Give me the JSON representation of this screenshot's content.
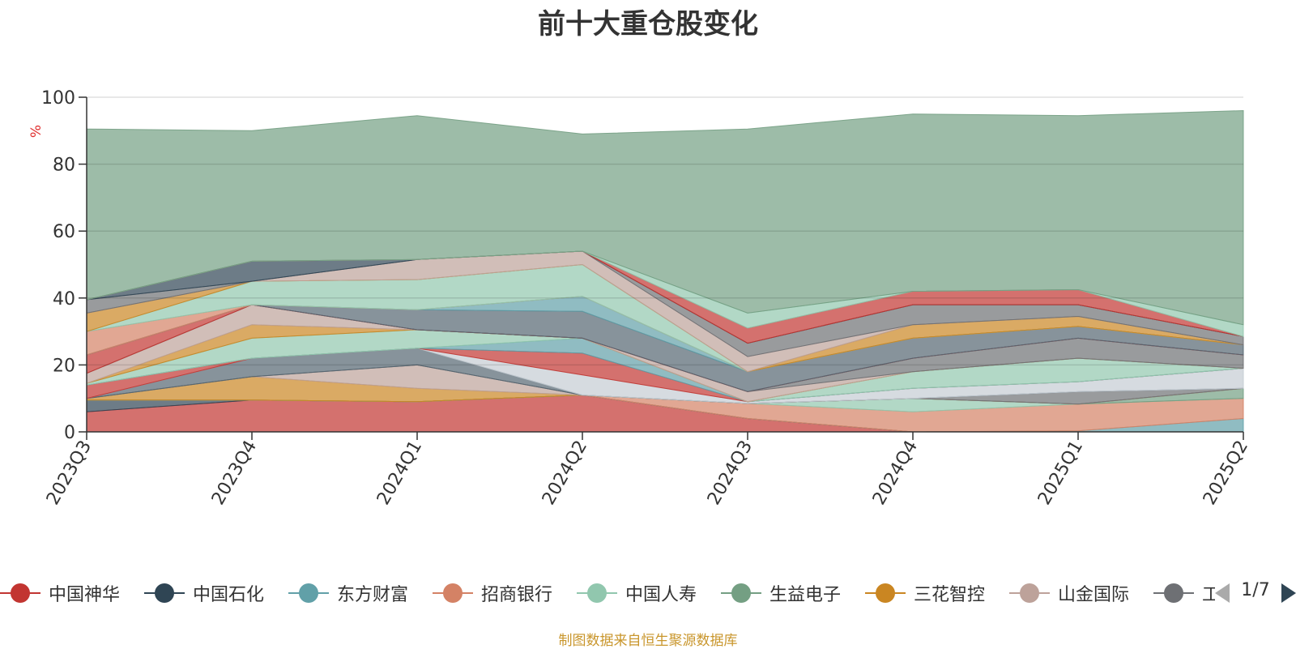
{
  "chart_data": {
    "type": "area",
    "stacked": true,
    "title": "前十大重仓股变化",
    "ylabel": "%",
    "ylim": [
      0,
      100
    ],
    "yticks": [
      0,
      20,
      40,
      60,
      80,
      100
    ],
    "grid": true,
    "x": [
      "2023Q3",
      "2023Q4",
      "2024Q1",
      "2024Q2",
      "2024Q3",
      "2024Q4",
      "2025Q1",
      "2025Q2"
    ],
    "series": [
      {
        "name": "中国神华",
        "color": "#c23531",
        "values": [
          6,
          9.5,
          9,
          11,
          4,
          0,
          0,
          0
        ]
      },
      {
        "name": "中国石化",
        "color": "#2f4554",
        "values": [
          3.5,
          0,
          0,
          0,
          0,
          0,
          0,
          0
        ]
      },
      {
        "name": "东方财富",
        "color": "#61a0a8",
        "values": [
          0,
          0,
          0,
          0,
          0,
          0,
          0.3,
          4
        ]
      },
      {
        "name": "招商银行",
        "color": "#d48265",
        "values": [
          0,
          0,
          0,
          0,
          4.5,
          6,
          8,
          6
        ]
      },
      {
        "name": "中国人寿",
        "color": "#91c7ae",
        "values": [
          0,
          0,
          0,
          0,
          0,
          4,
          0,
          0
        ]
      },
      {
        "name": "生益电子",
        "color": "#749f83",
        "values": [
          0,
          0,
          0,
          0,
          0,
          0,
          0,
          3
        ]
      },
      {
        "name": "三花智控",
        "color": "#ca8622",
        "values": [
          0.5,
          7,
          4,
          0,
          0,
          0,
          0,
          0
        ]
      },
      {
        "name": "山金国际",
        "color": "#bda29a",
        "values": [
          0,
          0,
          7,
          0,
          0,
          0,
          0,
          0
        ]
      },
      {
        "name": "",
        "color": "#6e7074",
        "values": [
          0,
          0,
          0,
          0,
          0,
          0,
          3.7,
          0
        ]
      },
      {
        "name": "",
        "color": "#546570",
        "values": [
          0,
          5.5,
          5,
          0,
          0,
          0,
          0,
          0
        ]
      },
      {
        "name": "",
        "color": "#c4ccd3",
        "values": [
          0,
          0,
          0,
          6,
          0.5,
          3,
          3,
          6
        ]
      },
      {
        "name": "",
        "color": "#c23531",
        "values": [
          4,
          0,
          0,
          6.5,
          0,
          0,
          0,
          0
        ]
      },
      {
        "name": "",
        "color": "#61a0a8",
        "values": [
          0,
          0,
          0,
          4.5,
          0,
          0,
          0,
          0
        ]
      },
      {
        "name": "",
        "color": "#91c7ae",
        "values": [
          0.5,
          6,
          5.5,
          0,
          0,
          5,
          7,
          0
        ]
      },
      {
        "name": "",
        "color": "#ca8622",
        "values": [
          0,
          4,
          0,
          0,
          0,
          0,
          0,
          0
        ]
      },
      {
        "name": "",
        "color": "#bda29a",
        "values": [
          3,
          6,
          0,
          0,
          3,
          0,
          0,
          0
        ]
      },
      {
        "name": "",
        "color": "#6e7074",
        "values": [
          0,
          0,
          0,
          0,
          0,
          4,
          6,
          4
        ]
      },
      {
        "name": "",
        "color": "#c23531",
        "values": [
          5.5,
          0,
          0,
          0,
          0,
          0,
          0,
          0
        ]
      },
      {
        "name": "",
        "color": "#546570",
        "values": [
          0,
          0,
          6,
          8,
          6,
          6,
          3.5,
          3
        ]
      },
      {
        "name": "",
        "color": "#61a0a8",
        "values": [
          0,
          0,
          0,
          4.5,
          0,
          0,
          0,
          0
        ]
      },
      {
        "name": "",
        "color": "#d48265",
        "values": [
          7,
          0,
          0,
          0,
          0,
          0,
          0,
          0
        ]
      },
      {
        "name": "",
        "color": "#91c7ae",
        "values": [
          0,
          7,
          9,
          9.5,
          0,
          0,
          0,
          0
        ]
      },
      {
        "name": "",
        "color": "#ca8622",
        "values": [
          5.5,
          0,
          0,
          0,
          0,
          4,
          3,
          0
        ]
      },
      {
        "name": "",
        "color": "#bda29a",
        "values": [
          0,
          0,
          6,
          4,
          4.5,
          0,
          0,
          0
        ]
      },
      {
        "name": "",
        "color": "#6e7074",
        "values": [
          4,
          0,
          0,
          0,
          4,
          6,
          3.5,
          2.5
        ]
      },
      {
        "name": "",
        "color": "#2f4554",
        "values": [
          0,
          6,
          0,
          0,
          0,
          0,
          0,
          0
        ]
      },
      {
        "name": "",
        "color": "#c23531",
        "values": [
          0,
          0,
          0,
          0,
          4.5,
          4,
          4.5,
          0
        ]
      },
      {
        "name": "",
        "color": "#91c7ae",
        "values": [
          0,
          0,
          0,
          0,
          4.5,
          0,
          0,
          3.5
        ]
      },
      {
        "name": "",
        "color": "#749f83",
        "values": [
          51,
          39,
          43,
          35,
          55,
          53,
          52,
          64
        ]
      }
    ]
  },
  "legend": {
    "items": [
      {
        "name": "中国神华",
        "color": "#c23531"
      },
      {
        "name": "中国石化",
        "color": "#2f4554"
      },
      {
        "name": "东方财富",
        "color": "#61a0a8"
      },
      {
        "name": "招商银行",
        "color": "#d48265"
      },
      {
        "name": "中国人寿",
        "color": "#91c7ae"
      },
      {
        "name": "生益电子",
        "color": "#749f83"
      },
      {
        "name": "三花智控",
        "color": "#ca8622"
      },
      {
        "name": "山金国际",
        "color": "#bda29a"
      },
      {
        "name": "工",
        "color": "#6e7074"
      }
    ],
    "page": "1/7"
  },
  "source_note": "制图数据来自恒生聚源数据库"
}
